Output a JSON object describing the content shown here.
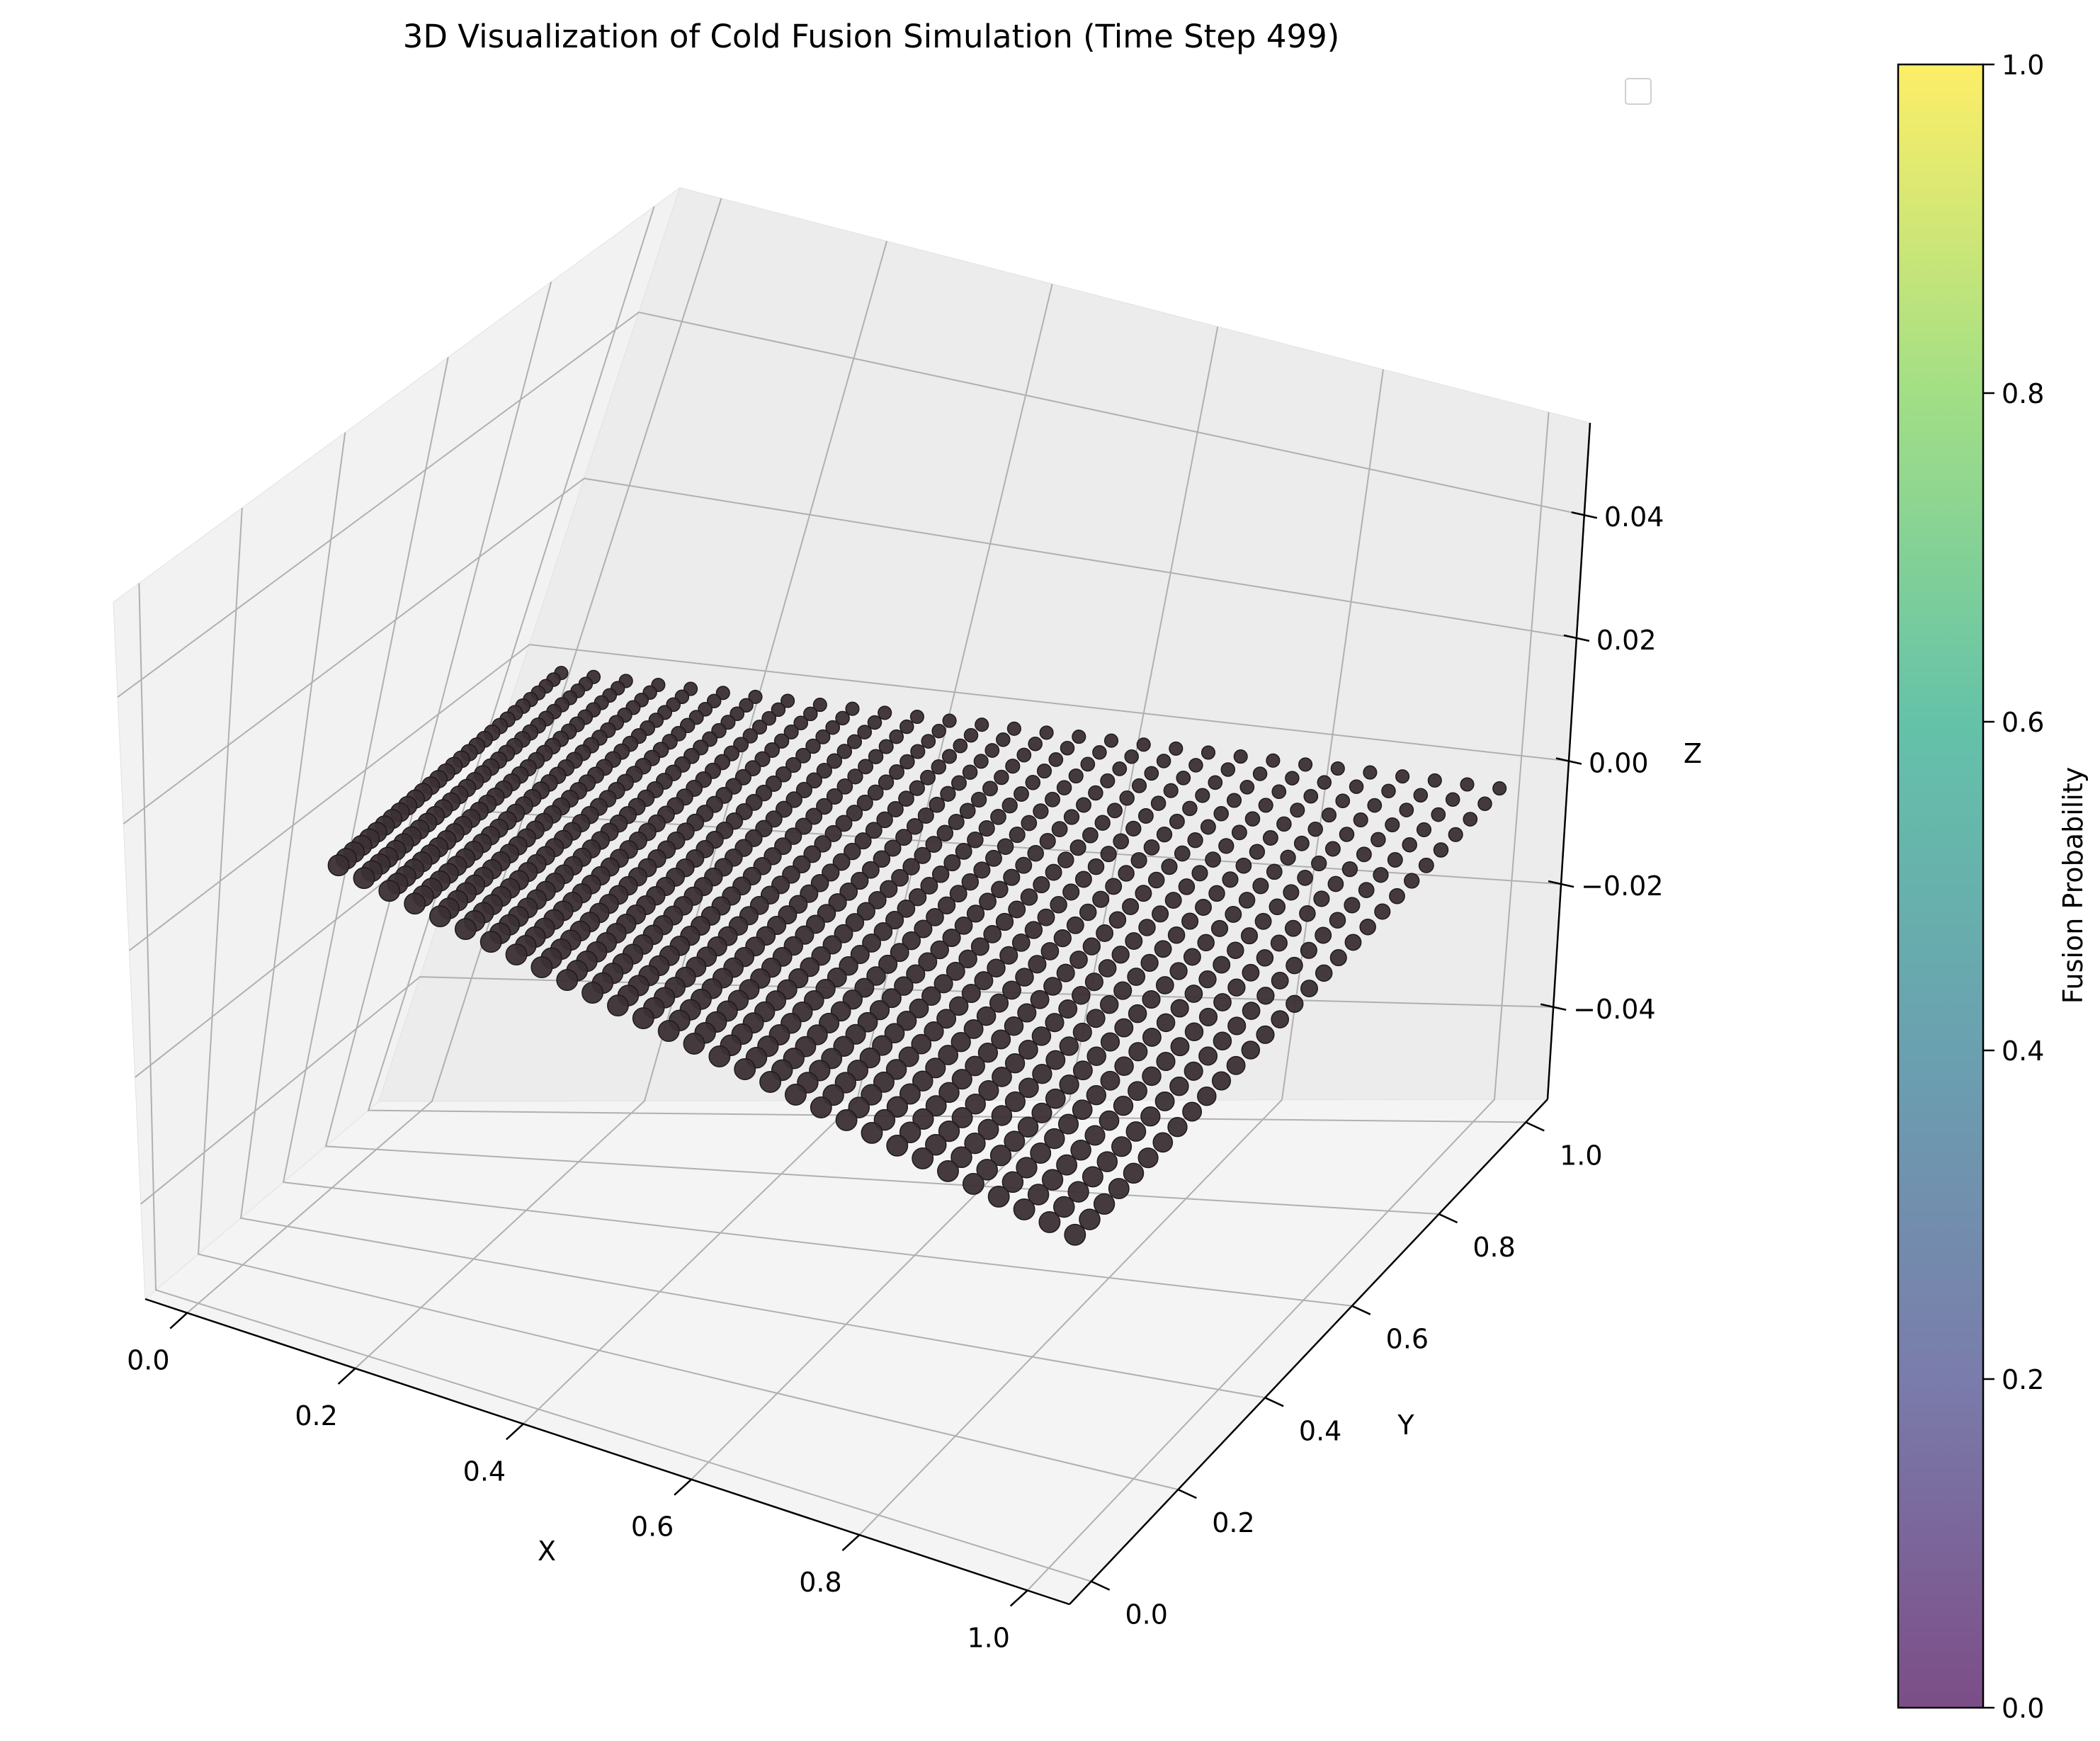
{
  "chart_data": {
    "type": "scatter",
    "projection": "3d",
    "title": "3D Visualization of Cold Fusion Simulation (Time Step 499)",
    "xlabel": "X",
    "ylabel": "Y",
    "zlabel": "Z",
    "xlim": [
      -0.05,
      1.05
    ],
    "ylim": [
      -0.05,
      1.05
    ],
    "zlim": [
      -0.055,
      0.055
    ],
    "x_ticks": [
      "0.0",
      "0.2",
      "0.4",
      "0.6",
      "0.8",
      "1.0"
    ],
    "y_ticks": [
      "0.0",
      "0.2",
      "0.4",
      "0.6",
      "0.8",
      "1.0"
    ],
    "z_ticks": [
      "−0.04",
      "−0.02",
      "0.00",
      "0.02",
      "0.04"
    ],
    "grid": true,
    "legend": {
      "placement": "upper right",
      "entries": []
    },
    "points": {
      "grid_size": [
        30,
        30
      ],
      "x_range": [
        0,
        1
      ],
      "y_range": [
        0,
        1
      ],
      "z": 0,
      "color": "#3b2f33",
      "edgecolor": "#1f1a1c",
      "fusion_probability": 0,
      "alpha": 0.8
    },
    "colorbar": {
      "label": "Fusion Probability",
      "range": [
        0,
        1
      ],
      "ticks": [
        "0.0",
        "0.2",
        "0.4",
        "0.6",
        "0.8",
        "1.0"
      ],
      "colormap": "viridis",
      "alpha": 0.7,
      "colors": [
        "#440154",
        "#414487",
        "#2a788e",
        "#22a884",
        "#7ad151",
        "#fde725"
      ]
    }
  }
}
